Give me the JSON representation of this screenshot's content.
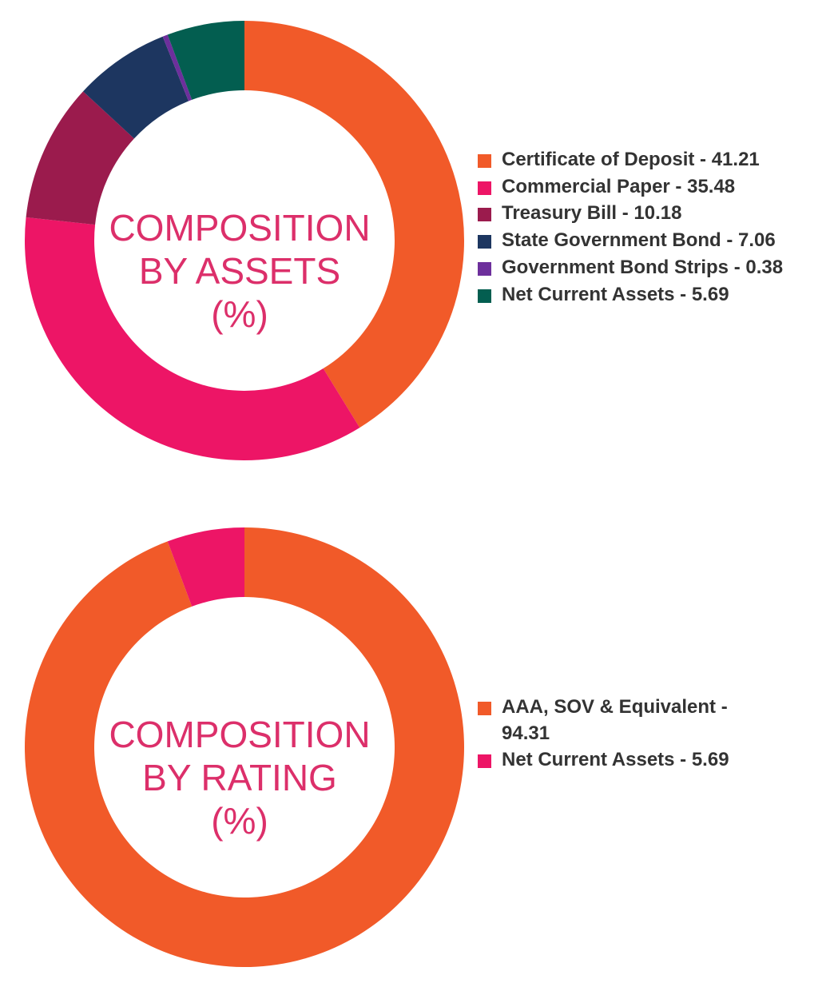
{
  "chart_data": [
    {
      "type": "pie",
      "title_lines": [
        "COMPOSITION",
        "BY ASSETS",
        "(%)"
      ],
      "categories": [
        "Certificate of Deposit",
        "Commercial Paper",
        "Treasury Bill",
        "State Government Bond",
        "Government Bond Strips",
        "Net Current Assets"
      ],
      "values": [
        41.21,
        35.48,
        10.18,
        7.06,
        0.38,
        5.69
      ],
      "colors": [
        "#f15a29",
        "#ed1566",
        "#9b1b4d",
        "#1d3660",
        "#6d2f9c",
        "#035e50"
      ],
      "legend_labels": [
        "Certificate of Deposit - 41.21",
        "Commercial Paper - 35.48",
        "Treasury Bill - 10.18",
        "State Government Bond - 7.06",
        "Government Bond Strips - 0.38",
        "Net Current Assets - 5.69"
      ],
      "legend_position": "right",
      "style": "donut"
    },
    {
      "type": "pie",
      "title_lines": [
        "COMPOSITION",
        "BY RATING",
        "(%)"
      ],
      "categories": [
        "AAA, SOV & Equivalent",
        "Net Current Assets"
      ],
      "values": [
        94.31,
        5.69
      ],
      "colors": [
        "#f15a29",
        "#ed1566"
      ],
      "legend_labels": [
        "AAA, SOV & Equivalent - 94.31",
        "Net Current Assets - 5.69"
      ],
      "legend_position": "right",
      "style": "donut"
    }
  ]
}
